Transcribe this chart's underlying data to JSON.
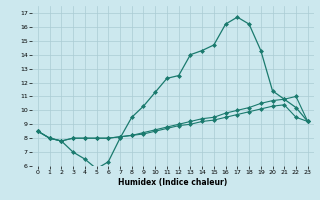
{
  "xlabel": "Humidex (Indice chaleur)",
  "bg_color": "#cce8ee",
  "grid_color": "#aaccd4",
  "line_color": "#1a7a6e",
  "xlim": [
    -0.5,
    23.5
  ],
  "ylim": [
    6,
    17.5
  ],
  "xticks": [
    0,
    1,
    2,
    3,
    4,
    5,
    6,
    7,
    8,
    9,
    10,
    11,
    12,
    13,
    14,
    15,
    16,
    17,
    18,
    19,
    20,
    21,
    22,
    23
  ],
  "yticks": [
    6,
    7,
    8,
    9,
    10,
    11,
    12,
    13,
    14,
    15,
    16,
    17
  ],
  "line1_x": [
    0,
    1,
    2,
    3,
    4,
    5,
    6,
    7,
    8,
    9,
    10,
    11,
    12,
    13,
    14,
    15,
    16,
    17,
    18,
    19,
    20,
    21,
    22,
    23
  ],
  "line1_y": [
    8.5,
    8.0,
    7.8,
    7.0,
    6.5,
    5.8,
    6.3,
    8.0,
    9.5,
    10.3,
    11.3,
    12.3,
    12.5,
    14.0,
    14.3,
    14.7,
    16.2,
    16.7,
    16.2,
    14.3,
    11.4,
    10.8,
    10.2,
    9.2
  ],
  "line2_x": [
    0,
    1,
    2,
    3,
    4,
    5,
    6,
    7,
    8,
    9,
    10,
    11,
    12,
    13,
    14,
    15,
    16,
    17,
    18,
    19,
    20,
    21,
    22,
    23
  ],
  "line2_y": [
    8.5,
    8.0,
    7.8,
    8.0,
    8.0,
    8.0,
    8.0,
    8.1,
    8.2,
    8.4,
    8.6,
    8.8,
    9.0,
    9.2,
    9.4,
    9.5,
    9.8,
    10.0,
    10.2,
    10.5,
    10.7,
    10.8,
    11.0,
    9.2
  ],
  "line3_x": [
    0,
    1,
    2,
    3,
    4,
    5,
    6,
    7,
    8,
    9,
    10,
    11,
    12,
    13,
    14,
    15,
    16,
    17,
    18,
    19,
    20,
    21,
    22,
    23
  ],
  "line3_y": [
    8.5,
    8.0,
    7.8,
    8.0,
    8.0,
    8.0,
    8.0,
    8.1,
    8.2,
    8.3,
    8.5,
    8.7,
    8.9,
    9.0,
    9.2,
    9.3,
    9.5,
    9.7,
    9.9,
    10.1,
    10.3,
    10.4,
    9.5,
    9.2
  ]
}
